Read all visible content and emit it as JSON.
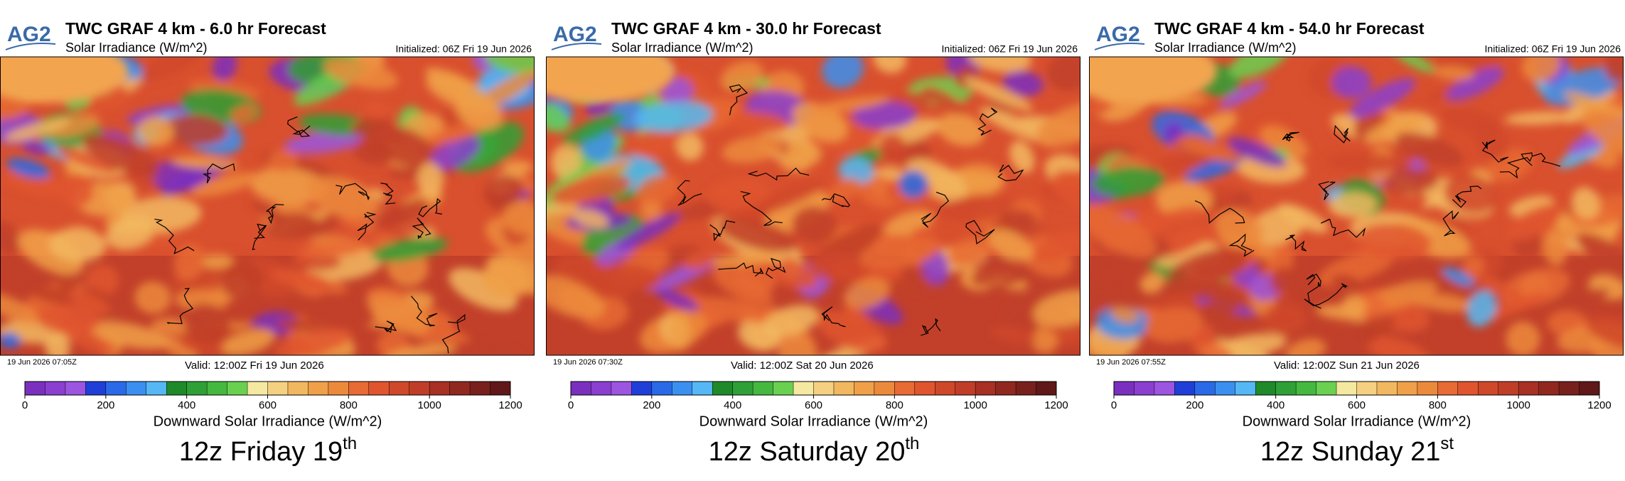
{
  "logo": "AG2",
  "colorbar": {
    "label": "Downward Solar Irradiance (W/m^2)",
    "lim": [
      0,
      1200
    ],
    "ticks": [
      0,
      200,
      400,
      600,
      800,
      1000,
      1200
    ],
    "colors": [
      "#7b2fbf",
      "#8a3fd0",
      "#9b55e0",
      "#1f3fd8",
      "#2a6ae8",
      "#3b8ff0",
      "#55b8f5",
      "#1f8a2a",
      "#2fa035",
      "#45b840",
      "#6ad050",
      "#f5e8a0",
      "#f5d080",
      "#f2b860",
      "#f0a048",
      "#ec8a3c",
      "#e86a34",
      "#e0552e",
      "#d0482a",
      "#c03e28",
      "#a83024",
      "#902820",
      "#78201c",
      "#601818"
    ]
  },
  "panels": [
    {
      "title": "TWC GRAF 4 km - 6.0 hr Forecast",
      "subtitle": "Solar Irradiance (W/m^2)",
      "initialized": "Initialized: 06Z Fri 19 Jun 2026",
      "timestamp": "19 Jun 2026 07:05Z",
      "valid": "Valid: 12:00Z Fri 19 Jun 2026",
      "caption": {
        "main": "12z Friday 19",
        "sup": "th"
      }
    },
    {
      "title": "TWC GRAF 4 km - 30.0 hr Forecast",
      "subtitle": "Solar Irradiance (W/m^2)",
      "initialized": "Initialized: 06Z Fri 19 Jun 2026",
      "timestamp": "19 Jun 2026 07:30Z",
      "valid": "Valid: 12:00Z Sat 20 Jun 2026",
      "caption": {
        "main": "12z Saturday 20",
        "sup": "th"
      }
    },
    {
      "title": "TWC GRAF 4 km - 54.0 hr Forecast",
      "subtitle": "Solar Irradiance (W/m^2)",
      "initialized": "Initialized: 06Z Fri 19 Jun 2026",
      "timestamp": "19 Jun 2026 07:55Z",
      "valid": "Valid: 12:00Z Sun 21 Jun 2026",
      "caption": {
        "main": "12z Sunday 21",
        "sup": "st"
      }
    }
  ]
}
